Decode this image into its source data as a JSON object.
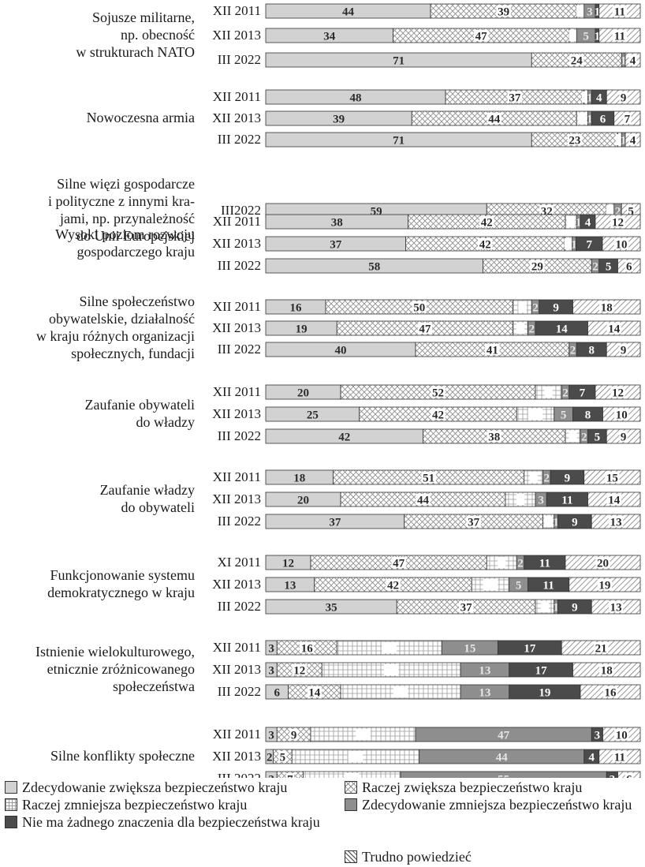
{
  "chart_data": {
    "type": "bar",
    "orientation": "horizontal",
    "stacked": true,
    "legend_position": "bottom",
    "series": [
      {
        "name": "Zdecydowanie zwiększa bezpieczeństwo kraju",
        "color": "#d0d0d0",
        "pattern": "solid-light"
      },
      {
        "name": "Raczej zwiększa bezpieczeństwo kraju",
        "color": "#ffffff",
        "pattern": "crosshatch"
      },
      {
        "name": "Raczej zmniejsza bezpieczeństwo kraju",
        "color": "#ffffff",
        "pattern": "grid"
      },
      {
        "name": "Zdecydowanie zmniejsza bezpieczeństwo kraju",
        "color": "#8c8c8c",
        "pattern": "solid-mid"
      },
      {
        "name": "Nie ma żadnego znaczenia dla bezpieczeństwa kraju",
        "color": "#4a4a4a",
        "pattern": "solid-dark"
      },
      {
        "name": "Trudno powiedzieć",
        "color": "#ffffff",
        "pattern": "diagonal"
      }
    ],
    "groups": [
      {
        "label_lines": [
          "Sojusze militarne,",
          "np. obecność",
          "w strukturach NATO"
        ],
        "bars": [
          {
            "year": "XII 2011",
            "values": [
              44,
              39,
              2,
              3,
              1,
              11
            ]
          },
          {
            "year": "XII 2013",
            "values": [
              34,
              47,
              2,
              5,
              1,
              11
            ]
          },
          {
            "year": "III 2022",
            "values": [
              71,
              24,
              0,
              1,
              0,
              4
            ]
          }
        ]
      },
      {
        "label_lines": [
          "Nowoczesna armia"
        ],
        "bars": [
          {
            "year": "XII 2011",
            "values": [
              48,
              37,
              1,
              1,
              4,
              9
            ]
          },
          {
            "year": "XII 2013",
            "values": [
              39,
              44,
              3,
              1,
              6,
              7
            ]
          },
          {
            "year": "III 2022",
            "values": [
              71,
              23,
              1,
              1,
              0,
              4
            ]
          }
        ]
      },
      {
        "label_lines": [
          "Silne więzi gospodarcze",
          "i polityczne z innymi kra-",
          "jami, np. przynależność",
          "do Unii Europejskiej"
        ],
        "bars": [
          {
            "year": "III2022",
            "values": [
              59,
              32,
              2,
              2,
              0,
              5
            ]
          }
        ]
      },
      {
        "label_lines": [
          "Wysoki poziom rozwoju",
          "gospodarczego kraju"
        ],
        "bars": [
          {
            "year": "XII 2011",
            "values": [
              38,
              42,
              3,
              1,
              4,
              12
            ]
          },
          {
            "year": "XII 2013",
            "values": [
              37,
              42,
              2,
              1,
              7,
              10
            ]
          },
          {
            "year": "III 2022",
            "values": [
              58,
              29,
              0,
              2,
              5,
              6
            ]
          }
        ]
      },
      {
        "label_lines": [
          "Silne społeczeństwo",
          "obywatelskie, działalność",
          "w kraju różnych organizacji",
          "społecznych, fundacji"
        ],
        "bars": [
          {
            "year": "XII 2011",
            "values": [
              16,
              50,
              5,
              2,
              9,
              18
            ]
          },
          {
            "year": "XII 2013",
            "values": [
              19,
              47,
              4,
              2,
              14,
              14
            ]
          },
          {
            "year": "III 2022",
            "values": [
              40,
              41,
              0,
              2,
              8,
              9
            ]
          }
        ]
      },
      {
        "label_lines": [
          "Zaufanie obywateli",
          "do władzy"
        ],
        "bars": [
          {
            "year": "XII 2011",
            "values": [
              20,
              52,
              7,
              2,
              7,
              12
            ]
          },
          {
            "year": "XII 2013",
            "values": [
              25,
              42,
              10,
              5,
              8,
              10
            ]
          },
          {
            "year": "III 2022",
            "values": [
              42,
              38,
              4,
              2,
              5,
              9
            ]
          }
        ]
      },
      {
        "label_lines": [
          "Zaufanie władzy",
          "do obywateli"
        ],
        "bars": [
          {
            "year": "XII 2011",
            "values": [
              18,
              51,
              5,
              2,
              9,
              15
            ]
          },
          {
            "year": "XII 2013",
            "values": [
              20,
              44,
              8,
              3,
              11,
              14
            ]
          },
          {
            "year": "III 2022",
            "values": [
              37,
              37,
              3,
              1,
              9,
              13
            ]
          }
        ]
      },
      {
        "label_lines": [
          "Funkcjonowanie systemu",
          "demokratycznego w kraju"
        ],
        "bars": [
          {
            "year": "XI 2011",
            "values": [
              12,
              47,
              8,
              2,
              11,
              20
            ]
          },
          {
            "year": "XII 2013",
            "values": [
              13,
              42,
              10,
              5,
              11,
              19
            ]
          },
          {
            "year": "III 2022",
            "values": [
              35,
              37,
              5,
              1,
              9,
              13
            ]
          }
        ]
      },
      {
        "label_lines": [
          "Istnienie wielokulturowego,",
          "etnicznie zróżnicowanego",
          "społeczeństwa"
        ],
        "bars": [
          {
            "year": "XII 2011",
            "values": [
              3,
              16,
              28,
              15,
              17,
              21
            ]
          },
          {
            "year": "XII 2013",
            "values": [
              3,
              12,
              37,
              13,
              17,
              18
            ]
          },
          {
            "year": "III 2022",
            "values": [
              6,
              14,
              32,
              13,
              19,
              16
            ]
          }
        ]
      },
      {
        "label_lines": [
          "Silne konflikty społeczne"
        ],
        "bars": [
          {
            "year": "XII 2011",
            "values": [
              3,
              9,
              28,
              47,
              3,
              10
            ]
          },
          {
            "year": "XII 2013",
            "values": [
              2,
              5,
              34,
              44,
              4,
              11
            ]
          },
          {
            "year": "III 2022",
            "values": [
              3,
              7,
              26,
              55,
              3,
              6
            ]
          }
        ]
      }
    ]
  }
}
